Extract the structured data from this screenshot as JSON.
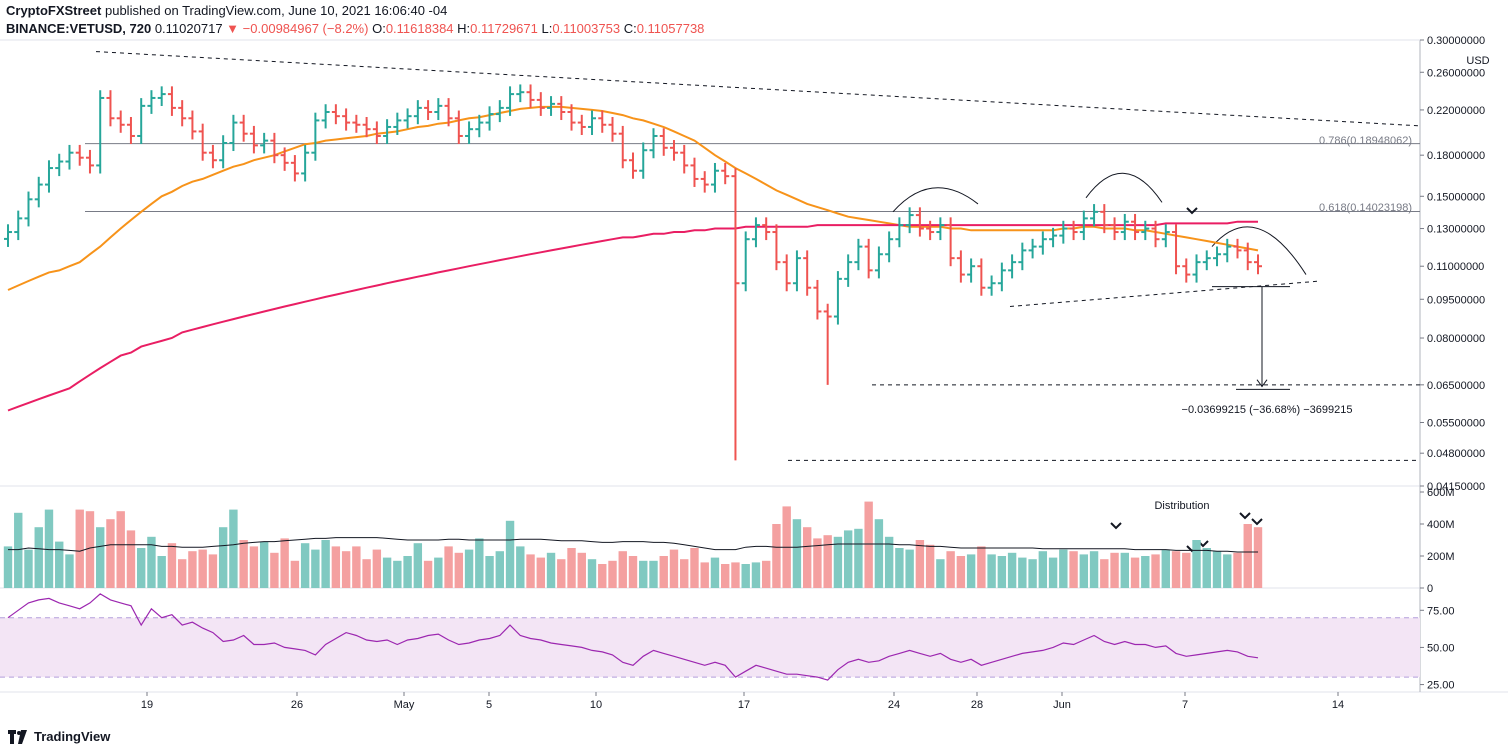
{
  "header": {
    "publisher": "CryptoFXStreet",
    "published_text": "published on TradingView.com, June 10, 2021 16:06:40 -04",
    "symbol": "BINANCE:VETUSD, 720",
    "last": "0.11020717",
    "change_arrow": "▼",
    "change": "−0.00984967 (−8.2%)",
    "open_label": "O:",
    "open": "0.11618384",
    "high_label": "H:",
    "high": "0.11729671",
    "low_label": "L:",
    "low": "0.11003753",
    "close_label": "C:",
    "close": "0.11057738"
  },
  "colors": {
    "up": "#26a69a",
    "down": "#ef5350",
    "ma_fast": "#f7931a",
    "ma_slow": "#e91e63",
    "rsi": "#9c27b0",
    "rsi_band": "#f3e5f5",
    "vol_up": "#80c9c1",
    "vol_down": "#f4a0a0"
  },
  "chart_data": [
    {
      "type": "ohlc",
      "currency_label": "USD",
      "y_scale": "log",
      "ylim": [
        0.0415,
        0.3
      ],
      "y_ticks": [
        "0.30000000",
        "0.26000000",
        "0.22000000",
        "0.18000000",
        "0.15000000",
        "0.13000000",
        "0.11000000",
        "0.09500000",
        "0.08000000",
        "0.06500000",
        "0.05500000",
        "0.04800000",
        "0.04150000"
      ],
      "x_ticks": [
        "19",
        "26",
        "May",
        "5",
        "10",
        "17",
        "24",
        "28",
        "Jun",
        "7",
        "14"
      ],
      "fib_levels": [
        {
          "label": "0.786(0.18948062)",
          "value": 0.18948062
        },
        {
          "label": "0.618(0.14023198)",
          "value": 0.14023198
        }
      ],
      "measure_annotation": "−0.03699215 (−36.68%) −3699215",
      "series": [
        {
          "name": "price",
          "close": [
            0.128,
            0.136,
            0.148,
            0.158,
            0.17,
            0.175,
            0.182,
            0.178,
            0.172,
            0.232,
            0.212,
            0.206,
            0.196,
            0.224,
            0.232,
            0.236,
            0.222,
            0.212,
            0.2,
            0.182,
            0.176,
            0.19,
            0.208,
            0.198,
            0.188,
            0.192,
            0.18,
            0.174,
            0.166,
            0.182,
            0.21,
            0.218,
            0.214,
            0.208,
            0.206,
            0.202,
            0.196,
            0.204,
            0.21,
            0.214,
            0.222,
            0.218,
            0.224,
            0.212,
            0.196,
            0.202,
            0.208,
            0.216,
            0.222,
            0.236,
            0.238,
            0.23,
            0.222,
            0.226,
            0.218,
            0.208,
            0.204,
            0.212,
            0.206,
            0.198,
            0.176,
            0.168,
            0.184,
            0.196,
            0.186,
            0.182,
            0.172,
            0.162,
            0.158,
            0.168,
            0.164,
            0.102,
            0.124,
            0.132,
            0.128,
            0.112,
            0.102,
            0.114,
            0.1,
            0.09,
            0.088,
            0.104,
            0.112,
            0.12,
            0.108,
            0.116,
            0.124,
            0.132,
            0.138,
            0.13,
            0.128,
            0.132,
            0.114,
            0.106,
            0.11,
            0.1,
            0.102,
            0.108,
            0.112,
            0.118,
            0.12,
            0.124,
            0.126,
            0.13,
            0.128,
            0.136,
            0.14,
            0.132,
            0.128,
            0.134,
            0.128,
            0.13,
            0.124,
            0.128,
            0.11,
            0.106,
            0.112,
            0.114,
            0.116,
            0.12,
            0.118,
            0.112,
            0.11
          ]
        },
        {
          "name": "MA fast",
          "values": [
            0.099,
            0.101,
            0.103,
            0.105,
            0.107,
            0.108,
            0.11,
            0.112,
            0.116,
            0.12,
            0.125,
            0.13,
            0.135,
            0.14,
            0.145,
            0.15,
            0.153,
            0.157,
            0.16,
            0.162,
            0.165,
            0.168,
            0.171,
            0.173,
            0.176,
            0.178,
            0.18,
            0.183,
            0.186,
            0.189,
            0.19,
            0.192,
            0.193,
            0.194,
            0.195,
            0.196,
            0.198,
            0.199,
            0.2,
            0.202,
            0.204,
            0.205,
            0.207,
            0.208,
            0.21,
            0.212,
            0.213,
            0.215,
            0.217,
            0.219,
            0.221,
            0.222,
            0.223,
            0.223,
            0.223,
            0.222,
            0.221,
            0.22,
            0.219,
            0.217,
            0.215,
            0.212,
            0.21,
            0.207,
            0.204,
            0.2,
            0.196,
            0.192,
            0.186,
            0.18,
            0.175,
            0.17,
            0.166,
            0.162,
            0.158,
            0.154,
            0.151,
            0.148,
            0.145,
            0.143,
            0.141,
            0.139,
            0.137,
            0.136,
            0.135,
            0.134,
            0.133,
            0.132,
            0.131,
            0.131,
            0.131,
            0.131,
            0.13,
            0.13,
            0.129,
            0.129,
            0.129,
            0.129,
            0.129,
            0.129,
            0.129,
            0.129,
            0.129,
            0.13,
            0.13,
            0.131,
            0.131,
            0.13,
            0.13,
            0.13,
            0.129,
            0.129,
            0.128,
            0.127,
            0.126,
            0.125,
            0.124,
            0.123,
            0.122,
            0.121,
            0.12,
            0.119,
            0.118
          ]
        },
        {
          "name": "MA slow",
          "values": [
            0.058,
            0.059,
            0.06,
            0.061,
            0.062,
            0.063,
            0.064,
            0.066,
            0.068,
            0.07,
            0.072,
            0.074,
            0.075,
            0.077,
            0.078,
            0.079,
            0.08,
            0.082,
            0.083,
            0.084,
            0.085,
            0.086,
            0.087,
            0.088,
            0.089,
            0.09,
            0.091,
            0.092,
            0.093,
            0.094,
            0.095,
            0.096,
            0.097,
            0.098,
            0.099,
            0.1,
            0.101,
            0.102,
            0.103,
            0.104,
            0.105,
            0.106,
            0.107,
            0.108,
            0.109,
            0.11,
            0.111,
            0.112,
            0.113,
            0.114,
            0.115,
            0.116,
            0.117,
            0.118,
            0.119,
            0.12,
            0.121,
            0.122,
            0.123,
            0.124,
            0.125,
            0.125,
            0.126,
            0.127,
            0.127,
            0.128,
            0.128,
            0.129,
            0.129,
            0.13,
            0.13,
            0.13,
            0.131,
            0.131,
            0.131,
            0.131,
            0.131,
            0.131,
            0.131,
            0.132,
            0.132,
            0.132,
            0.132,
            0.132,
            0.132,
            0.132,
            0.132,
            0.132,
            0.132,
            0.132,
            0.132,
            0.132,
            0.132,
            0.132,
            0.132,
            0.132,
            0.132,
            0.132,
            0.132,
            0.132,
            0.132,
            0.132,
            0.132,
            0.132,
            0.132,
            0.132,
            0.132,
            0.132,
            0.132,
            0.132,
            0.132,
            0.132,
            0.132,
            0.133,
            0.133,
            0.133,
            0.133,
            0.133,
            0.133,
            0.133,
            0.134,
            0.134,
            0.134
          ]
        }
      ]
    },
    {
      "type": "bar",
      "annotation": "Distribution",
      "y_ticks": [
        "600M",
        "400M",
        "200M",
        "0"
      ],
      "ylim": [
        0,
        600
      ],
      "series": [
        {
          "name": "volume",
          "values": [
            260,
            470,
            240,
            380,
            490,
            290,
            210,
            490,
            480,
            380,
            430,
            480,
            360,
            250,
            320,
            200,
            280,
            180,
            230,
            240,
            210,
            380,
            490,
            300,
            260,
            290,
            220,
            310,
            170,
            280,
            240,
            300,
            260,
            230,
            260,
            180,
            240,
            190,
            170,
            200,
            280,
            170,
            190,
            260,
            220,
            240,
            310,
            200,
            230,
            420,
            260,
            210,
            190,
            220,
            180,
            250,
            220,
            180,
            150,
            170,
            230,
            200,
            170,
            170,
            200,
            240,
            180,
            250,
            160,
            190,
            150,
            160,
            150,
            160,
            170,
            400,
            510,
            430,
            380,
            310,
            330,
            320,
            360,
            370,
            540,
            430,
            320,
            250,
            240,
            300,
            270,
            180,
            230,
            200,
            210,
            260,
            210,
            200,
            220,
            190,
            180,
            230,
            190,
            240,
            230,
            210,
            230,
            180,
            220,
            220,
            190,
            200,
            210,
            240,
            230,
            220,
            300,
            250,
            230,
            210,
            220,
            400,
            380
          ]
        },
        {
          "name": "volume MA",
          "values": [
            240,
            240,
            250,
            245,
            240,
            240,
            235,
            230,
            250,
            260,
            270,
            270,
            270,
            270,
            270,
            260,
            260,
            255,
            255,
            255,
            260,
            265,
            270,
            280,
            285,
            290,
            290,
            295,
            300,
            305,
            310,
            310,
            315,
            315,
            315,
            315,
            315,
            310,
            305,
            300,
            300,
            300,
            300,
            305,
            305,
            300,
            300,
            300,
            300,
            300,
            305,
            305,
            305,
            300,
            295,
            295,
            295,
            290,
            285,
            285,
            290,
            290,
            290,
            285,
            285,
            280,
            270,
            260,
            250,
            240,
            240,
            240,
            255,
            260,
            260,
            255,
            255,
            255,
            260,
            265,
            270,
            275,
            275,
            275,
            275,
            275,
            275,
            270,
            270,
            265,
            260,
            260,
            255,
            250,
            250,
            250,
            250,
            250,
            250,
            250,
            250,
            245,
            245,
            245,
            245,
            245,
            245,
            245,
            245,
            245,
            240,
            240,
            240,
            240,
            235,
            235,
            235,
            235,
            230,
            230,
            225,
            225,
            225
          ]
        }
      ]
    },
    {
      "type": "line",
      "y_ticks": [
        "75.00",
        "50.00",
        "25.00"
      ],
      "ylim": [
        20,
        90
      ],
      "series": [
        {
          "name": "RSI",
          "values": [
            70,
            75,
            80,
            82,
            83,
            80,
            78,
            76,
            80,
            86,
            82,
            80,
            78,
            65,
            76,
            70,
            72,
            65,
            67,
            63,
            60,
            54,
            55,
            58,
            52,
            52,
            53,
            50,
            49,
            48,
            45,
            52,
            56,
            60,
            58,
            55,
            54,
            55,
            52,
            55,
            56,
            58,
            59,
            55,
            52,
            53,
            55,
            56,
            58,
            65,
            58,
            56,
            55,
            53,
            52,
            51,
            50,
            48,
            47,
            45,
            40,
            38,
            44,
            48,
            46,
            44,
            42,
            40,
            38,
            40,
            38,
            30,
            34,
            38,
            36,
            34,
            32,
            32,
            31,
            30,
            28,
            35,
            40,
            42,
            40,
            41,
            44,
            46,
            48,
            46,
            44,
            46,
            42,
            40,
            42,
            38,
            40,
            42,
            44,
            46,
            47,
            48,
            50,
            53,
            52,
            55,
            58,
            54,
            52,
            54,
            52,
            52,
            50,
            51,
            46,
            44,
            45,
            46,
            47,
            48,
            47,
            44,
            43
          ]
        }
      ]
    }
  ]
}
